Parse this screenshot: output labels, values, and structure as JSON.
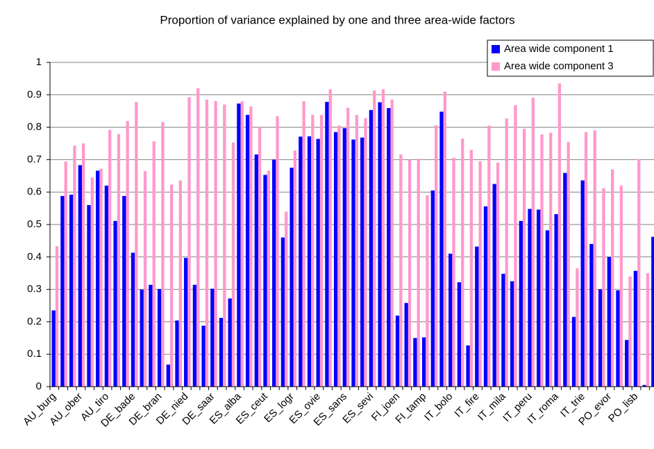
{
  "chart_data": {
    "type": "bar",
    "title": "Proportion of variance explained by one and three area-wide factors",
    "categories": [
      "AU_burg",
      null,
      null,
      "AU_ober",
      null,
      null,
      "AU_tiro",
      null,
      null,
      "DE_bade",
      null,
      null,
      "DE_bran",
      null,
      null,
      "DE_nied",
      null,
      null,
      "DE_saar",
      null,
      null,
      "ES_alba",
      null,
      null,
      "ES_ceut",
      null,
      null,
      "ES_logr",
      null,
      null,
      "ES_ovie",
      null,
      null,
      "ES_sans",
      null,
      null,
      "ES_sevi",
      null,
      null,
      "FI_joen",
      null,
      null,
      "FI_tamp",
      null,
      null,
      "IT_bolo",
      null,
      null,
      "IT_fire",
      null,
      null,
      "IT_mila",
      null,
      null,
      "IT_peru",
      null,
      null,
      "IT_roma",
      null,
      null,
      "IT_trie",
      null,
      null,
      "PO_evor",
      null,
      null,
      "PO_lisb",
      null,
      null
    ],
    "series": [
      {
        "name": "Area wide component 1",
        "color": "#0000ff",
        "values": [
          0.235,
          0.588,
          0.592,
          0.683,
          0.56,
          0.666,
          0.62,
          0.511,
          0.588,
          0.413,
          0.299,
          0.314,
          0.301,
          0.068,
          0.204,
          0.397,
          0.314,
          0.188,
          0.302,
          0.212,
          0.272,
          0.873,
          0.838,
          0.716,
          0.653,
          0.7,
          0.46,
          0.675,
          0.771,
          0.772,
          0.764,
          0.878,
          0.785,
          0.797,
          0.762,
          0.768,
          0.853,
          0.877,
          0.859,
          0.219,
          0.258,
          0.15,
          0.152,
          0.605,
          0.848,
          0.41,
          0.322,
          0.127,
          0.432,
          0.556,
          0.625,
          0.348,
          0.325,
          0.511,
          0.548,
          0.546,
          0.482,
          0.532,
          0.659,
          0.215,
          0.636,
          0.44,
          0.3,
          0.4,
          0.297,
          0.144,
          0.357,
          0.005,
          0.462
        ]
      },
      {
        "name": "Area wide component 3",
        "color": "#ff99cc",
        "values": [
          0.433,
          0.694,
          0.743,
          0.75,
          0.645,
          0.672,
          0.792,
          0.779,
          0.819,
          0.878,
          0.665,
          0.756,
          0.816,
          0.623,
          0.636,
          0.893,
          0.92,
          0.885,
          0.881,
          0.87,
          0.753,
          0.88,
          0.864,
          0.8,
          0.666,
          0.834,
          0.54,
          0.728,
          0.88,
          0.838,
          0.838,
          0.917,
          0.805,
          0.86,
          0.838,
          0.828,
          0.913,
          0.917,
          0.885,
          0.716,
          0.7,
          0.703,
          0.59,
          0.806,
          0.91,
          0.706,
          0.765,
          0.73,
          0.695,
          0.805,
          0.691,
          0.827,
          0.868,
          0.795,
          0.891,
          0.778,
          0.783,
          0.935,
          0.755,
          0.365,
          0.785,
          0.79,
          0.612,
          0.67,
          0.62,
          0.34,
          0.702,
          0.35,
          null
        ]
      }
    ],
    "ylim": [
      0,
      1
    ],
    "yticks": [
      0,
      0.1,
      0.2,
      0.3,
      0.4,
      0.5,
      0.6,
      0.7,
      0.8,
      0.9,
      1
    ],
    "grid": true,
    "legend": "top-right"
  }
}
